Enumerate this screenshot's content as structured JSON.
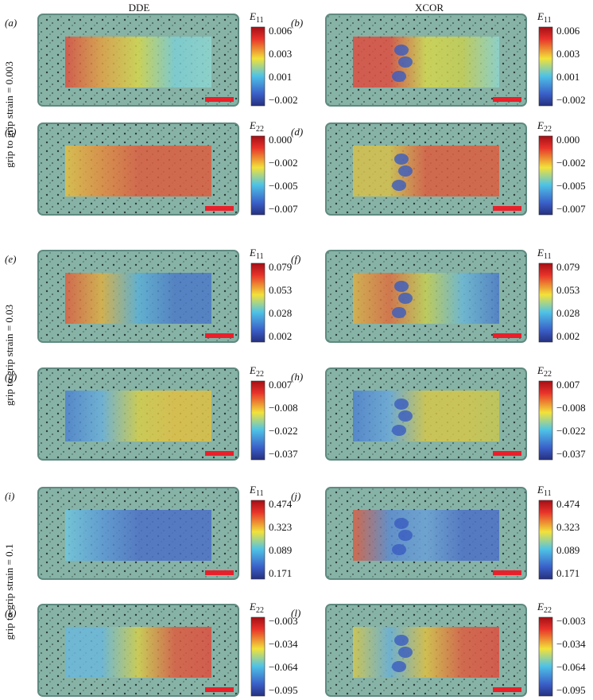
{
  "columns": [
    "DDE",
    "XCOR"
  ],
  "row_labels": [
    "grip to grip strain = 0.003",
    "grip to grip strain = 0.03",
    "grip to grip strain = 0.1"
  ],
  "panels": [
    {
      "label": "(a)",
      "symbol": "E",
      "subscript": "11",
      "ticks": [
        "0.006",
        "0.003",
        "0.001",
        "−0.002"
      ]
    },
    {
      "label": "(b)",
      "symbol": "E",
      "subscript": "11",
      "ticks": [
        "0.006",
        "0.003",
        "0.001",
        "−0.002"
      ]
    },
    {
      "label": "(c)",
      "symbol": "E",
      "subscript": "22",
      "ticks": [
        "0.000",
        "−0.002",
        "−0.005",
        "−0.007"
      ]
    },
    {
      "label": "(d)",
      "symbol": "E",
      "subscript": "22",
      "ticks": [
        "0.000",
        "−0.002",
        "−0.005",
        "−0.007"
      ]
    },
    {
      "label": "(e)",
      "symbol": "E",
      "subscript": "11",
      "ticks": [
        "0.079",
        "0.053",
        "0.028",
        "0.002"
      ]
    },
    {
      "label": "(f)",
      "symbol": "E",
      "subscript": "11",
      "ticks": [
        "0.079",
        "0.053",
        "0.028",
        "0.002"
      ]
    },
    {
      "label": "(g)",
      "symbol": "E",
      "subscript": "22",
      "ticks": [
        "0.007",
        "−0.008",
        "−0.022",
        "−0.037"
      ]
    },
    {
      "label": "(h)",
      "symbol": "E",
      "subscript": "22",
      "ticks": [
        "0.007",
        "−0.008",
        "−0.022",
        "−0.037"
      ]
    },
    {
      "label": "(i)",
      "symbol": "E",
      "subscript": "11",
      "ticks": [
        "0.474",
        "0.323",
        "0.089",
        "0.171"
      ]
    },
    {
      "label": "(j)",
      "symbol": "E",
      "subscript": "11",
      "ticks": [
        "0.474",
        "0.323",
        "0.089",
        "0.171"
      ]
    },
    {
      "label": "(k)",
      "symbol": "E",
      "subscript": "22",
      "ticks": [
        "−0.003",
        "−0.034",
        "−0.064",
        "−0.095"
      ]
    },
    {
      "label": "(l)",
      "symbol": "E",
      "subscript": "22",
      "ticks": [
        "−0.003",
        "−0.034",
        "−0.064",
        "−0.095"
      ]
    }
  ]
}
